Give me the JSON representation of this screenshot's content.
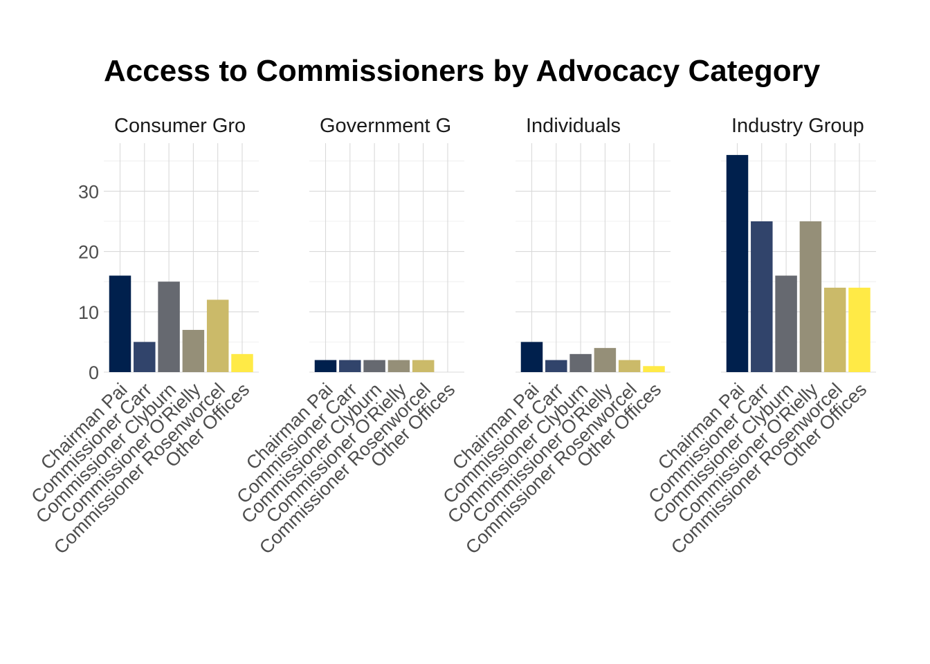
{
  "chart_data": {
    "type": "bar",
    "title": "Access to Commissioners by Advocacy Category",
    "xlabel": "",
    "ylabel": "",
    "ylim": [
      0,
      37
    ],
    "yticks": [
      0,
      10,
      20,
      30
    ],
    "grid": true,
    "legend": "none",
    "categories": [
      "Chairman Pai",
      "Commissioner Carr",
      "Commissioner Clyburn",
      "Commissioner O'Rielly",
      "Commissioner Rosenworcel",
      "Other Offices"
    ],
    "colors": [
      "#00204D",
      "#31446B",
      "#666970",
      "#958F78",
      "#CBBA69",
      "#FFEA46"
    ],
    "facets": [
      {
        "label": "Consumer Gro",
        "values": [
          16,
          5,
          15,
          7,
          12,
          3
        ]
      },
      {
        "label": "Government G",
        "values": [
          2,
          2,
          2,
          2,
          2,
          0
        ]
      },
      {
        "label": "Individuals",
        "values": [
          5,
          2,
          3,
          4,
          2,
          1
        ]
      },
      {
        "label": "Industry Group",
        "values": [
          36,
          25,
          16,
          25,
          14,
          14
        ]
      }
    ]
  }
}
